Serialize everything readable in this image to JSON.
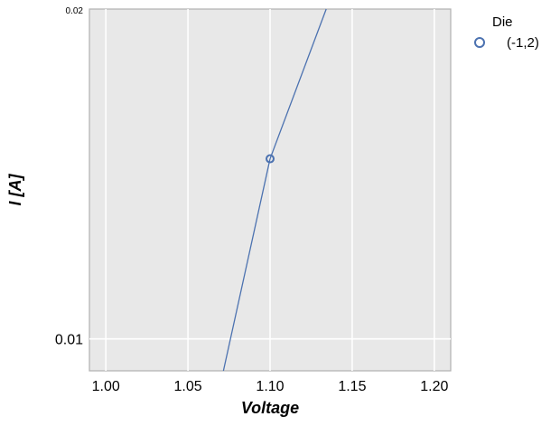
{
  "chart_data": {
    "type": "line",
    "title": "",
    "xlabel": "Voltage",
    "ylabel": "I [A]",
    "xlim": [
      0.99,
      1.21
    ],
    "ylim": [
      0.00935,
      0.02
    ],
    "y_scale": "log",
    "grid": true,
    "background_color": "#e8e8e8",
    "grid_color": "#ffffff",
    "x_ticks": [
      1.0,
      1.05,
      1.1,
      1.15,
      1.2
    ],
    "x_tick_labels": [
      "1.00",
      "1.05",
      "1.10",
      "1.15",
      "1.20"
    ],
    "y_ticks": [
      0.01,
      0.02
    ],
    "y_tick_labels": [
      "0.01",
      "0.02"
    ],
    "legend": {
      "title": "Die",
      "placement": "outside-top-right",
      "entries": [
        {
          "label": "(-1,2)",
          "color": "#4c72b0",
          "marker": "open-circle"
        }
      ]
    },
    "series": [
      {
        "name": "(-1,2)",
        "color": "#4c72b0",
        "line_x": [
          1.0716,
          1.1,
          1.1342
        ],
        "line_y": [
          0.00935,
          0.0146,
          0.02
        ],
        "points": [
          {
            "x": 1.1,
            "y": 0.0146
          }
        ]
      }
    ]
  }
}
